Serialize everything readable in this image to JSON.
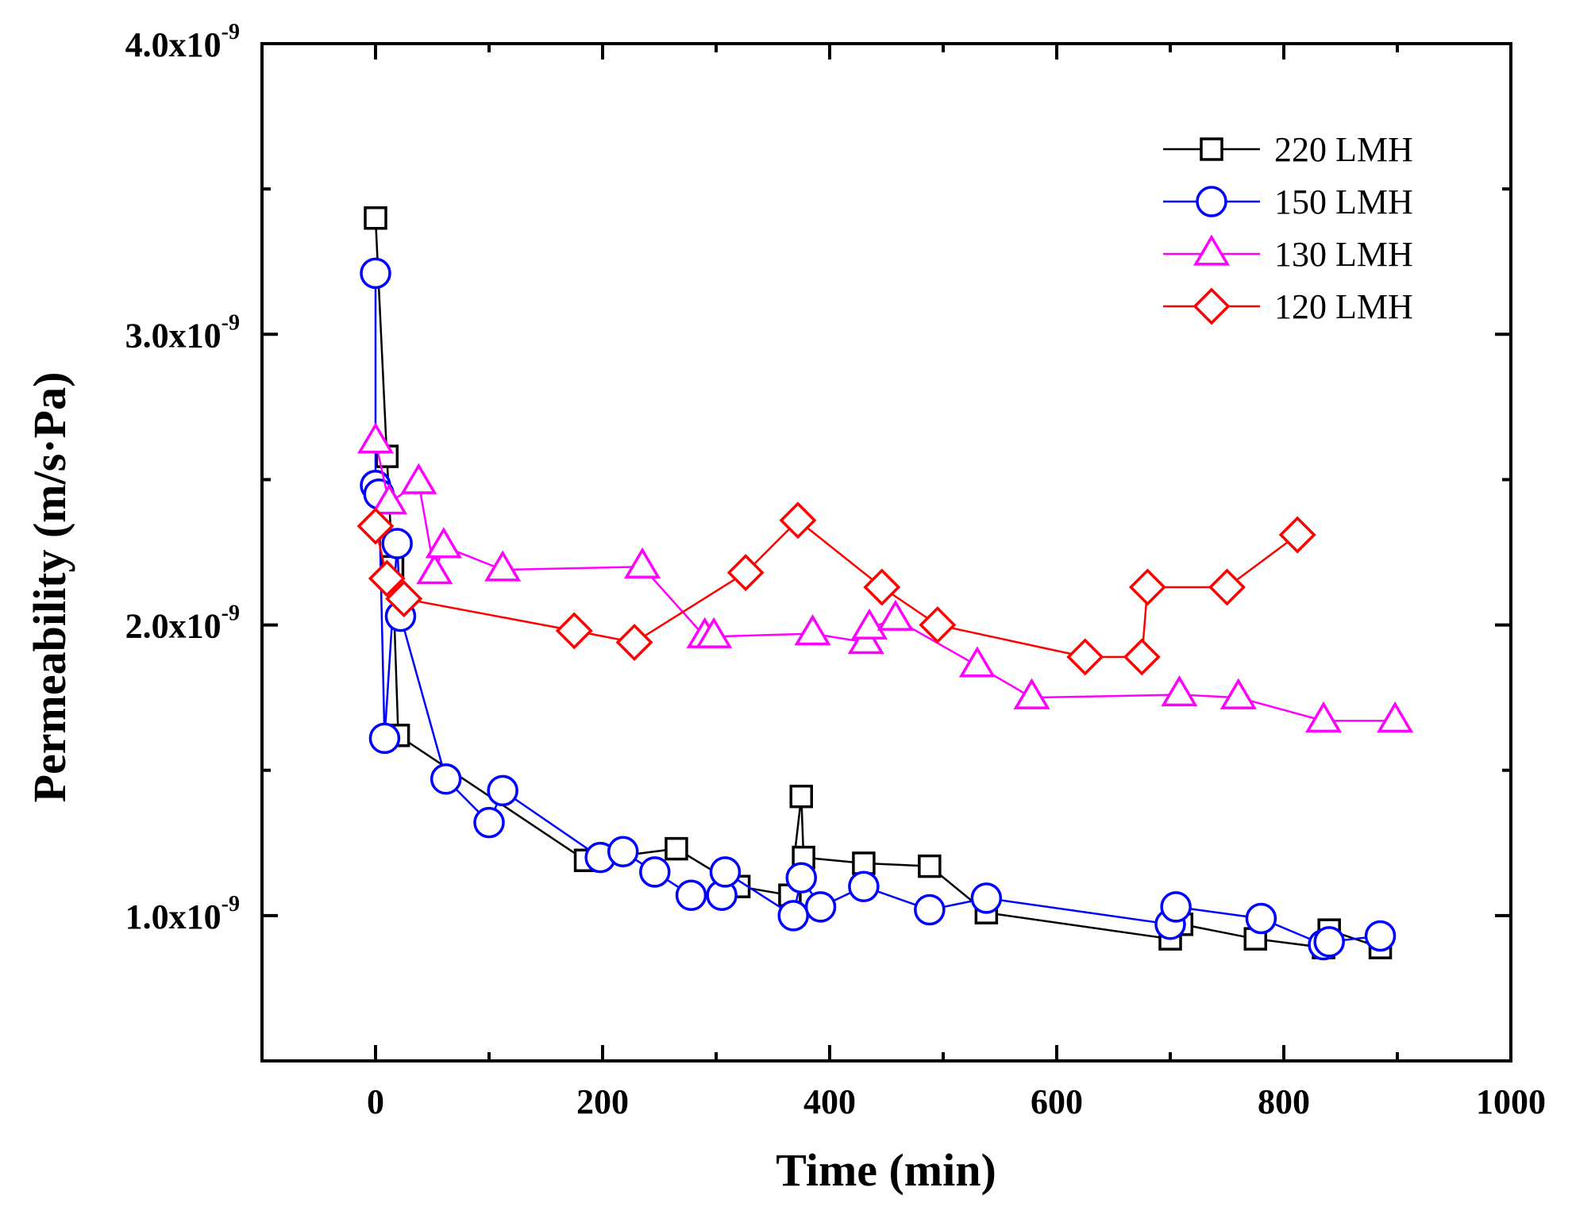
{
  "chart_data": {
    "type": "scatter",
    "title": "",
    "xlabel": "Time (min)",
    "ylabel": "Permeability (m/s·Pa)",
    "xlim": [
      -100,
      1000
    ],
    "ylim": [
      0.5,
      4.0
    ],
    "y_scale_exponent": "-9",
    "x_ticks": [
      0,
      200,
      400,
      600,
      800,
      1000
    ],
    "x_tick_labels": [
      "0",
      "200",
      "400",
      "600",
      "800",
      "1000"
    ],
    "y_ticks": [
      1.0,
      2.0,
      3.0,
      4.0
    ],
    "y_tick_labels": [
      {
        "mantissa": "1.0x10",
        "exponent": "-9"
      },
      {
        "mantissa": "2.0x10",
        "exponent": "-9"
      },
      {
        "mantissa": "3.0x10",
        "exponent": "-9"
      },
      {
        "mantissa": "4.0x10",
        "exponent": "-9"
      }
    ],
    "legend_position": "top-right",
    "grid": false,
    "series": [
      {
        "name": "220 LMH",
        "color": "#000000",
        "marker": "square",
        "points": [
          [
            0,
            3.4
          ],
          [
            10,
            2.58
          ],
          [
            15,
            2.2
          ],
          [
            20,
            1.62
          ],
          [
            185,
            1.19
          ],
          [
            265,
            1.23
          ],
          [
            320,
            1.1
          ],
          [
            365,
            1.07
          ],
          [
            375,
            1.41
          ],
          [
            377,
            1.2
          ],
          [
            430,
            1.18
          ],
          [
            488,
            1.17
          ],
          [
            538,
            1.01
          ],
          [
            700,
            0.92
          ],
          [
            710,
            0.97
          ],
          [
            775,
            0.92
          ],
          [
            835,
            0.89
          ],
          [
            840,
            0.95
          ],
          [
            885,
            0.89
          ]
        ]
      },
      {
        "name": "150 LMH",
        "color": "#0000ff",
        "marker": "circle",
        "points": [
          [
            0,
            3.21
          ],
          [
            0,
            2.48
          ],
          [
            3,
            2.45
          ],
          [
            8,
            1.61
          ],
          [
            19,
            2.28
          ],
          [
            22,
            2.03
          ],
          [
            62,
            1.47
          ],
          [
            100,
            1.32
          ],
          [
            112,
            1.43
          ],
          [
            198,
            1.2
          ],
          [
            218,
            1.22
          ],
          [
            246,
            1.15
          ],
          [
            278,
            1.07
          ],
          [
            305,
            1.07
          ],
          [
            308,
            1.15
          ],
          [
            368,
            1.0
          ],
          [
            375,
            1.13
          ],
          [
            392,
            1.03
          ],
          [
            430,
            1.1
          ],
          [
            488,
            1.02
          ],
          [
            538,
            1.06
          ],
          [
            700,
            0.97
          ],
          [
            705,
            1.03
          ],
          [
            780,
            0.99
          ],
          [
            835,
            0.9
          ],
          [
            840,
            0.91
          ],
          [
            885,
            0.93
          ]
        ]
      },
      {
        "name": "130 LMH",
        "color": "#ff00ff",
        "marker": "triangle",
        "points": [
          [
            0,
            2.63
          ],
          [
            12,
            2.42
          ],
          [
            38,
            2.49
          ],
          [
            52,
            2.18
          ],
          [
            60,
            2.27
          ],
          [
            112,
            2.19
          ],
          [
            235,
            2.2
          ],
          [
            290,
            1.96
          ],
          [
            298,
            1.96
          ],
          [
            385,
            1.97
          ],
          [
            432,
            1.94
          ],
          [
            435,
            1.99
          ],
          [
            458,
            2.02
          ],
          [
            530,
            1.86
          ],
          [
            578,
            1.75
          ],
          [
            708,
            1.76
          ],
          [
            760,
            1.75
          ],
          [
            835,
            1.67
          ],
          [
            898,
            1.67
          ]
        ]
      },
      {
        "name": "120 LMH",
        "color": "#ff0000",
        "marker": "diamond",
        "points": [
          [
            0,
            2.34
          ],
          [
            10,
            2.16
          ],
          [
            25,
            2.09
          ],
          [
            175,
            1.98
          ],
          [
            228,
            1.94
          ],
          [
            326,
            2.18
          ],
          [
            372,
            2.36
          ],
          [
            446,
            2.13
          ],
          [
            495,
            2.0
          ],
          [
            625,
            1.89
          ],
          [
            675,
            1.89
          ],
          [
            680,
            2.13
          ],
          [
            750,
            2.13
          ],
          [
            812,
            2.31
          ]
        ]
      }
    ]
  }
}
